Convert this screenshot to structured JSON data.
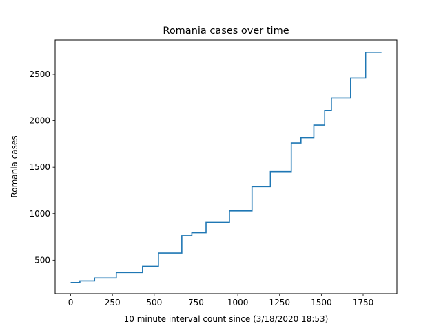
{
  "chart_data": {
    "type": "line",
    "title": "Romania cases over time",
    "xlabel": "10 minute interval count since (3/18/2020 18:53)",
    "ylabel": "Romania cases",
    "xlim": [
      -93,
      1952
    ],
    "ylim": [
      140,
      2870
    ],
    "xticks": [
      0,
      250,
      500,
      750,
      1000,
      1250,
      1500,
      1750
    ],
    "yticks": [
      500,
      1000,
      1500,
      2000,
      2500
    ],
    "grid": false,
    "line_color": "#1f77b4",
    "series": [
      {
        "drawstyle": "steps-post",
        "x": [
          0,
          55,
          143,
          273,
          430,
          525,
          665,
          725,
          810,
          950,
          1085,
          1195,
          1320,
          1378,
          1455,
          1520,
          1560,
          1675,
          1765,
          1860
        ],
        "y": [
          260,
          277,
          308,
          367,
          433,
          576,
          762,
          794,
          906,
          1029,
          1292,
          1452,
          1760,
          1815,
          1952,
          2109,
          2245,
          2460,
          2738,
          2738
        ]
      }
    ]
  }
}
